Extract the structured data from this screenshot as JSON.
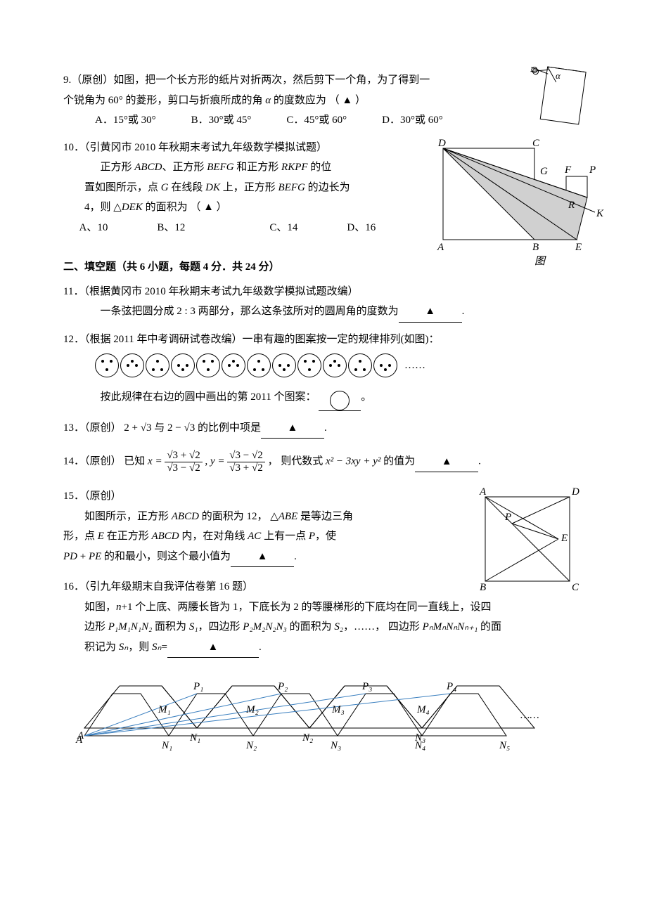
{
  "q9": {
    "num": "9.",
    "src": "（原创）",
    "text1": "如图，把一个长方形的纸片对折两次，然后剪下一个角，为了得到一",
    "text2": "个锐角为 60° 的菱形，剪口与折痕所成的角 ",
    "alpha": "α",
    "text3": " 的度数应为 （  ▲  ）",
    "options": {
      "a": "A．15°或 30°",
      "b": "B．30°或 45°",
      "c": "C．45°或 60°",
      "d": "D．30°或 60°"
    },
    "fig": {
      "scissor": "scissor-icon",
      "alpha_label": "α"
    }
  },
  "q10": {
    "num": "10．",
    "src": "（引黄冈市 2010 年秋期末考试九年级数学模拟试题）",
    "line1_a": "正方形 ",
    "line1_b": "ABCD",
    "line1_c": "、正方形 ",
    "line1_d": "BEFG",
    "line1_e": " 和正方形 ",
    "line1_f": "RKPF",
    "line1_g": " 的位",
    "line2_a": "置如图所示，点 ",
    "line2_b": "G",
    "line2_c": " 在线段 ",
    "line2_d": "DK",
    "line2_e": " 上，正方形 ",
    "line2_f": "BEFG",
    "line2_g": " 的边长为",
    "line3_a": "4，则 ",
    "line3_tri": "△",
    "line3_b": "DEK",
    "line3_c": " 的面积为 （  ▲  ）",
    "options": {
      "a": "A、10",
      "b": "B、12",
      "c": "C、14",
      "d": "D、16"
    },
    "fig": {
      "labels": {
        "A": "A",
        "B": "B",
        "C": "C",
        "D": "D",
        "E": "E",
        "F": "F",
        "G": "G",
        "K": "K",
        "P": "P",
        "R": "R",
        "cap": "图"
      },
      "colors": {
        "line": "#000000",
        "fill": "#d0d0d0"
      }
    }
  },
  "section2": {
    "title": "二、填空题（共 6 小题，每题 4 分．共 24 分）"
  },
  "q11": {
    "num": "11．",
    "src": "（根据黄冈市 2010 年秋期末考试九年级数学模拟试题改编）",
    "text": "一条弦把圆分成 2 : 3 两部分，那么这条弦所对的圆周角的度数为",
    "blank": "▲",
    "period": "."
  },
  "q12": {
    "num": "12．",
    "src": "（根据 2011 年中考调研试卷改编）一串有趣的图案按一定的规律排列(如图)：",
    "patterns": [
      [
        [
          10,
          10
        ],
        [
          22,
          10
        ],
        [
          16,
          22
        ]
      ],
      [
        [
          10,
          16
        ],
        [
          16,
          10
        ],
        [
          22,
          16
        ]
      ],
      [
        [
          16,
          10
        ],
        [
          10,
          22
        ],
        [
          22,
          22
        ]
      ],
      [
        [
          10,
          16
        ],
        [
          22,
          16
        ],
        [
          16,
          22
        ]
      ],
      [
        [
          10,
          10
        ],
        [
          22,
          10
        ],
        [
          16,
          22
        ]
      ],
      [
        [
          10,
          16
        ],
        [
          16,
          10
        ],
        [
          22,
          16
        ]
      ],
      [
        [
          16,
          10
        ],
        [
          10,
          22
        ],
        [
          22,
          22
        ]
      ],
      [
        [
          10,
          16
        ],
        [
          22,
          16
        ],
        [
          16,
          22
        ]
      ],
      [
        [
          10,
          10
        ],
        [
          22,
          10
        ],
        [
          16,
          22
        ]
      ],
      [
        [
          10,
          16
        ],
        [
          16,
          10
        ],
        [
          22,
          16
        ]
      ],
      [
        [
          16,
          10
        ],
        [
          10,
          22
        ],
        [
          22,
          22
        ]
      ],
      [
        [
          10,
          16
        ],
        [
          22,
          16
        ],
        [
          16,
          22
        ]
      ]
    ],
    "ellipsis": "……",
    "text2": "按此规律在右边的圆中画出的第 2011 个图案：",
    "period": "。"
  },
  "q13": {
    "num": "13．",
    "src": "（原创）",
    "a": "2 + √3",
    "mid": " 与 ",
    "b": "2 − √3",
    "rest": " 的比例中项是",
    "blank": "▲",
    "period": "."
  },
  "q14": {
    "num": "14．",
    "src": "（原创）",
    "prefix": "已知 ",
    "x_eq": "x =",
    "x_num": "√3 + √2",
    "x_den": "√3 − √2",
    "comma": ",  ",
    "y_eq": "y =",
    "y_num": "√3 − √2",
    "y_den": "√3 + √2",
    "sep": "， 则代数式 ",
    "expr": "x² − 3xy + y²",
    "rest": " 的值为",
    "blank": "▲",
    "period": "."
  },
  "q15": {
    "num": "15．",
    "src": "（原创）",
    "l1a": "如图所示，正方形 ",
    "l1b": "ABCD",
    "l1c": " 的面积为 12， ",
    "l1tri": "△",
    "l1d": "ABE",
    "l1e": " 是等边三角",
    "l2a": "形，点 ",
    "l2b": "E",
    "l2c": " 在正方形 ",
    "l2d": "ABCD",
    "l2e": " 内，在对角线 ",
    "l2f": "AC",
    "l2g": " 上有一点 ",
    "l2h": "P",
    "l2i": "，使",
    "l3a": "PD",
    "l3b": " + ",
    "l3c": "PE",
    "l3d": " 的和最小，则这个最小值为",
    "blank": "▲",
    "period": ".",
    "fig": {
      "labels": {
        "A": "A",
        "B": "B",
        "C": "C",
        "D": "D",
        "E": "E",
        "P": "P"
      }
    }
  },
  "q16": {
    "num": "16．",
    "src": "（引九年级期末自我评估卷第 16 题）",
    "l1a": "如图，",
    "l1b": "n",
    "l1c": "+1 个上底、两腰长皆为 1，下底长为 2 的等腰梯形的下底均在同一直线上，设四",
    "l2a": "边形 ",
    "l2b": "P₁M₁N₁N₂",
    "l2c": " 面积为 ",
    "l2d": "S₁",
    "l2e": "，四边形 ",
    "l2f": "P₂M₂N₂N₃",
    "l2g": " 的面积为 ",
    "l2h": "S₂",
    "l2i": "，……， 四边形 ",
    "l2j": "PₙMₙNₙNₙ₊₁",
    "l2k": " 的面",
    "l3a": "积记为 ",
    "l3b": "Sₙ",
    "l3c": "，则 ",
    "l3d": "Sₙ",
    "l3e": "=",
    "blank": "▲",
    "period": ".",
    "fig": {
      "labels": {
        "A": "A",
        "N1": "N₁",
        "N2": "N₂",
        "N3": "N₃",
        "N4": "N₄",
        "N5": "N₅",
        "P1": "P₁",
        "P2": "P₂",
        "P3": "P₃",
        "P4": "P₄",
        "M1": "M₁",
        "M2": "M₂",
        "M3": "M₃",
        "M4": "M₄",
        "dots": "……"
      },
      "colors": {
        "line": "#000000",
        "ray": "#3a7fbf"
      }
    }
  }
}
